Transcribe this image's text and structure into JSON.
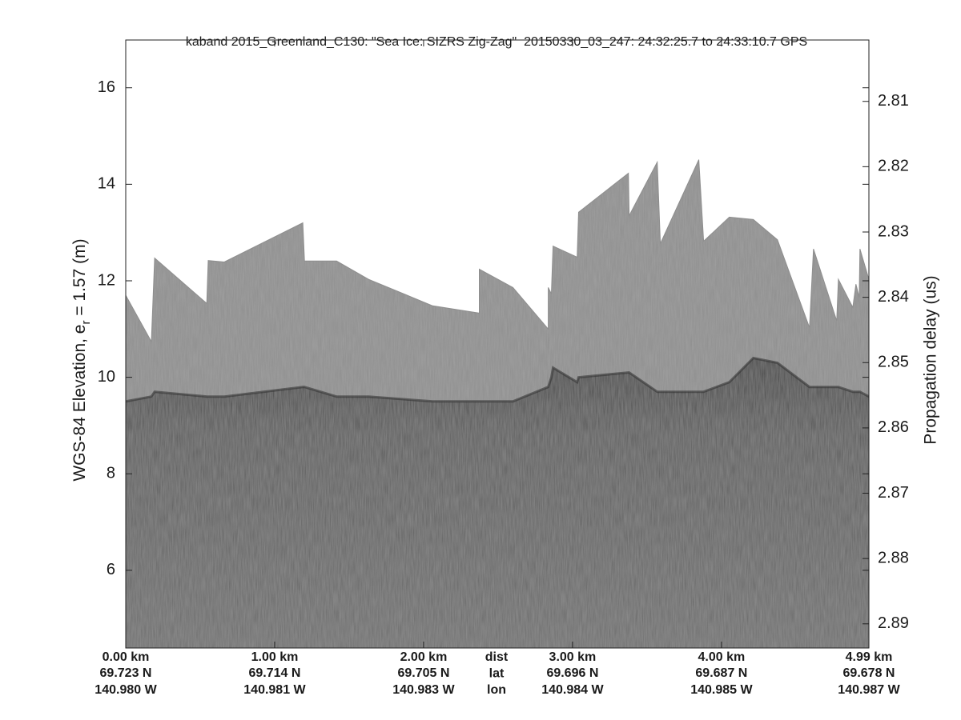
{
  "chart_data": {
    "type": "radargram",
    "title": "kaband 2015_Greenland_C130: \"Sea Ice: SIZRS Zig-Zag\"  20150330_03_247: 24:32:25.7 to 24:33:10.7 GPS",
    "ylabel": [
      "WGS-84 Elevation, e",
      "r",
      " = 1.57 (m)"
    ],
    "y2label": "Propagation delay (us)",
    "xlim": [
      0,
      4.99
    ],
    "xticks": [
      {
        "value": 0,
        "label": "0.00 km"
      },
      {
        "value": 1,
        "label": "1.00 km"
      },
      {
        "value": 2,
        "label": "2.00 km"
      },
      {
        "value": 3,
        "label": "3.00 km"
      },
      {
        "value": 4,
        "label": "4.00 km"
      },
      {
        "value": 4.99,
        "label": "4.99 km"
      }
    ],
    "lat_labels": [
      "69.723 N",
      "69.714 N",
      "69.705 N",
      "69.696 N",
      "69.687 N",
      "69.678 N"
    ],
    "lon_labels": [
      "140.980 W",
      "140.981 W",
      "140.983 W",
      "140.984 W",
      "140.985 W",
      "140.987 W"
    ],
    "row_labels": [
      "dist",
      "lat",
      "lon"
    ],
    "ylim": [
      4.39,
      16.99
    ],
    "yticks": [
      6,
      8,
      10,
      12,
      14,
      16
    ],
    "y2lim": [
      2.8937,
      2.8006
    ],
    "y2ticks": [
      2.81,
      2.82,
      2.83,
      2.84,
      2.85,
      2.86,
      2.87,
      2.88,
      2.89
    ],
    "x": [
      0,
      0.172,
      0.194,
      0.544,
      0.554,
      0.662,
      1.189,
      1.2,
      1.416,
      1.631,
      2.061,
      2.374,
      2.374,
      2.6,
      2.837,
      2.837,
      2.858,
      2.869,
      3.031,
      3.041,
      3.375,
      3.38,
      3.569,
      3.59,
      3.848,
      3.88,
      4.053,
      4.214,
      4.376,
      4.591,
      4.618,
      4.774,
      4.785,
      4.882,
      4.903,
      4.925,
      4.93,
      4.99
    ],
    "series": [
      {
        "color": "#8e8e8e",
        "values": [
          11.7,
          10.74,
          12.47,
          11.53,
          12.42,
          12.39,
          13.2,
          12.41,
          12.41,
          12.03,
          11.48,
          11.33,
          12.24,
          11.86,
          11.0,
          11.86,
          11.73,
          12.72,
          12.49,
          13.42,
          14.23,
          13.35,
          14.46,
          12.77,
          14.51,
          12.82,
          13.32,
          13.27,
          12.85,
          11.03,
          12.66,
          11.17,
          12.03,
          11.45,
          11.93,
          11.66,
          12.66,
          12.03
        ]
      },
      {
        "color": "#5c5c5c",
        "values": [
          9.5,
          9.6,
          9.7,
          9.6,
          9.6,
          9.6,
          9.8,
          9.8,
          9.6,
          9.6,
          9.5,
          9.5,
          9.5,
          9.5,
          9.8,
          9.8,
          10.0,
          10.2,
          9.9,
          10.0,
          10.1,
          10.1,
          9.7,
          9.7,
          9.7,
          9.7,
          9.9,
          10.4,
          10.3,
          9.8,
          9.8,
          9.8,
          9.8,
          9.7,
          9.7,
          9.7,
          9.7,
          9.6
        ]
      }
    ]
  }
}
